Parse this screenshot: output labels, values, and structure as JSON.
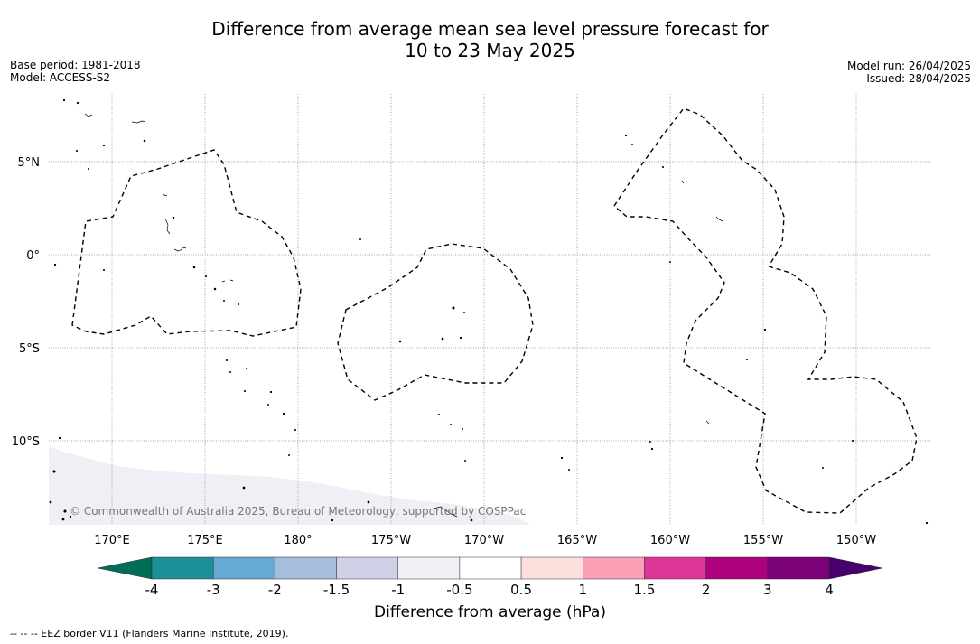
{
  "title": {
    "line1": "Difference from average mean sea level pressure forecast for",
    "line2": "10 to 23 May 2025"
  },
  "meta_left": {
    "base_period": "Base period: 1981-2018",
    "model": "Model: ACCESS-S2"
  },
  "meta_right": {
    "model_run": "Model run: 26/04/2025",
    "issued": "Issued: 28/04/2025"
  },
  "map": {
    "longitude_labels": [
      "170°E",
      "175°E",
      "180°",
      "175°W",
      "170°W",
      "165°W",
      "160°W",
      "155°W",
      "150°W"
    ],
    "latitude_labels": [
      "5°N",
      "0°",
      "5°S",
      "10°S"
    ],
    "copyright": "© Commonwealth of Australia 2025, Bureau of Meteorology, supported by COSPPac",
    "shaded_category": "-1 to -0.5",
    "shaded_color": "#f2eef6",
    "eez_style": "dashed black line"
  },
  "colorbar": {
    "title": "Difference from average (hPa)",
    "tick_labels": [
      "-4",
      "-3",
      "-2",
      "-1.5",
      "-1",
      "-0.5",
      "0.5",
      "1",
      "1.5",
      "2",
      "3",
      "4"
    ],
    "colors": [
      "#1b9097",
      "#66aad4",
      "#a6bddb",
      "#d0d1e6",
      "#f2eef6",
      "#ffffff",
      "#fde0dd",
      "#fa9fb5",
      "#dd3497",
      "#ae017e",
      "#7a0177"
    ],
    "extend_low_color": "#016c59",
    "extend_high_color": "#49006a"
  },
  "footnote": "--  --  -- EEZ border V11 (Flanders Marine Institute, 2019)."
}
